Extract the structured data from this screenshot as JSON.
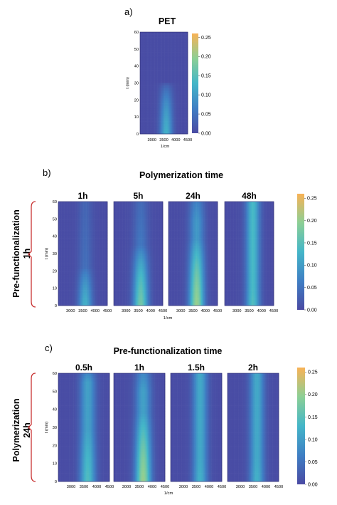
{
  "colors": {
    "low": "#4a4aa3",
    "mid1": "#3f7fc4",
    "mid2": "#44b6c8",
    "mid3": "#8ccf95",
    "high": "#f8b256",
    "bracket": "#c83232"
  },
  "chart_data": [
    {
      "type": "heatmap",
      "panel": "a)",
      "title": "PET",
      "xlabel": "1/cm",
      "ylabel": "t (min)",
      "xlim": [
        2500,
        4500
      ],
      "ylim": [
        0,
        60
      ],
      "x_ticks": [
        "3000",
        "3500",
        "4000",
        "4500"
      ],
      "y_ticks": [
        "0",
        "10",
        "20",
        "30",
        "40",
        "50",
        "60"
      ],
      "colorbar": {
        "min": 0.0,
        "max": 0.26,
        "ticks": [
          "0.00",
          "0.05",
          "0.10",
          "0.15",
          "0.20",
          "0.25"
        ]
      },
      "series": [
        {
          "label": "PET",
          "peak_x": 3600,
          "width": 260,
          "max": 0.12,
          "top": 30,
          "persist": 0.0
        }
      ]
    },
    {
      "type": "heatmap",
      "panel": "b)",
      "title": "Polymerization time",
      "row_label_top": "Pre-functionalization",
      "row_label_bottom": "1h",
      "xlabel": "1/cm",
      "ylabel": "t (min)",
      "xlim": [
        2500,
        4500
      ],
      "ylim": [
        0,
        60
      ],
      "x_ticks": [
        "3000",
        "3500",
        "4000",
        "4500"
      ],
      "y_ticks": [
        "0",
        "10",
        "20",
        "30",
        "40",
        "50",
        "60"
      ],
      "colorbar": {
        "min": 0.0,
        "max": 0.26,
        "ticks": [
          "0.00",
          "0.05",
          "0.10",
          "0.15",
          "0.20",
          "0.25"
        ]
      },
      "series": [
        {
          "label": "1h",
          "peak_x": 3600,
          "width": 280,
          "max": 0.12,
          "top": 25,
          "persist": 0.04
        },
        {
          "label": "5h",
          "peak_x": 3600,
          "width": 300,
          "max": 0.17,
          "top": 38,
          "persist": 0.05
        },
        {
          "label": "24h",
          "peak_x": 3650,
          "width": 300,
          "max": 0.2,
          "top": 48,
          "persist": 0.09
        },
        {
          "label": "48h",
          "peak_x": 3650,
          "width": 280,
          "max": 0.14,
          "top": 60,
          "persist": 0.13
        }
      ]
    },
    {
      "type": "heatmap",
      "panel": "c)",
      "title": "Pre-functionalization time",
      "row_label_top": "Polymerization",
      "row_label_bottom": "24h",
      "xlabel": "1/cm",
      "ylabel": "t (min)",
      "xlim": [
        2500,
        4500
      ],
      "ylim": [
        0,
        60
      ],
      "x_ticks": [
        "3000",
        "3500",
        "4000",
        "4500"
      ],
      "y_ticks": [
        "0",
        "10",
        "20",
        "30",
        "40",
        "50",
        "60"
      ],
      "colorbar": {
        "min": 0.0,
        "max": 0.26,
        "ticks": [
          "0.00",
          "0.05",
          "0.10",
          "0.15",
          "0.20",
          "0.25"
        ]
      },
      "series": [
        {
          "label": "0.5h",
          "peak_x": 3650,
          "width": 300,
          "max": 0.14,
          "top": 55,
          "persist": 0.1
        },
        {
          "label": "1h",
          "peak_x": 3650,
          "width": 300,
          "max": 0.2,
          "top": 50,
          "persist": 0.1
        },
        {
          "label": "1.5h",
          "peak_x": 3650,
          "width": 280,
          "max": 0.12,
          "top": 60,
          "persist": 0.11
        },
        {
          "label": "2h",
          "peak_x": 3650,
          "width": 280,
          "max": 0.12,
          "top": 60,
          "persist": 0.11
        }
      ]
    }
  ]
}
